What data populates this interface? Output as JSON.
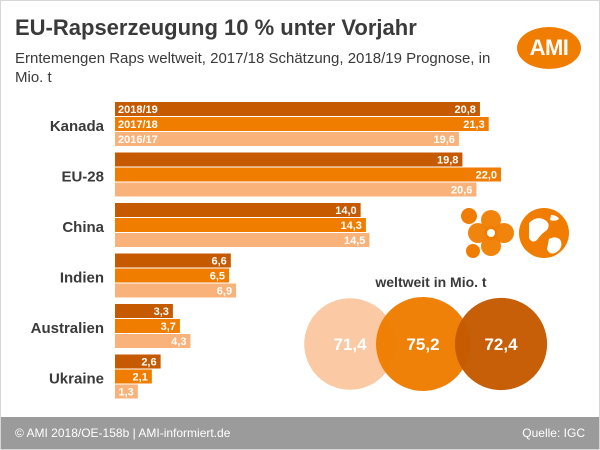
{
  "header": {
    "title": "EU-Rapserzeugung 10 % unter Vorjahr",
    "subtitle": "Erntemengen Raps weltweit, 2017/18 Schätzung, 2018/19 Prognose, in Mio. t",
    "logo_text": "AMI"
  },
  "footer": {
    "credit": "© AMI 2018/OE-158b | AMI-informiert.de",
    "source": "Quelle: IGC"
  },
  "colors": {
    "series_2018_19": "#c55a00",
    "series_2017_18": "#f07d00",
    "series_2016_17": "#f9b27a",
    "circle_light": "#fbc9a3",
    "circle_mid": "#f07d00",
    "circle_dark": "#c55a00",
    "icon": "#f07d00"
  },
  "icons": [
    "flower-icon",
    "globe-icon"
  ],
  "chart_data": [
    {
      "type": "bar",
      "orientation": "horizontal",
      "categories": [
        "Kanada",
        "EU-28",
        "China",
        "Indien",
        "Australien",
        "Ukraine"
      ],
      "series": [
        {
          "name": "2018/19",
          "values": [
            20.8,
            19.8,
            14.0,
            6.6,
            3.3,
            2.6
          ]
        },
        {
          "name": "2017/18",
          "values": [
            21.3,
            22.0,
            14.3,
            6.5,
            3.7,
            2.1
          ]
        },
        {
          "name": "2016/17",
          "values": [
            19.6,
            20.6,
            14.5,
            6.9,
            4.3,
            1.3
          ]
        }
      ],
      "value_labels": [
        [
          "20,8",
          "19,8",
          "14,0",
          "6,6",
          "3,3",
          "2,6"
        ],
        [
          "21,3",
          "22,0",
          "14,3",
          "6,5",
          "3,7",
          "2,1"
        ],
        [
          "19,6",
          "20,6",
          "14,5",
          "6,9",
          "4,3",
          "1,3"
        ]
      ],
      "legend": "inside first category bars",
      "xlim": [
        0,
        22
      ],
      "grid": false
    },
    {
      "type": "bubble",
      "title": "weltweit in Mio. t",
      "values": [
        71.4,
        75.2,
        72.4
      ],
      "labels": [
        "71,4",
        "75,2",
        "72,4"
      ]
    }
  ]
}
